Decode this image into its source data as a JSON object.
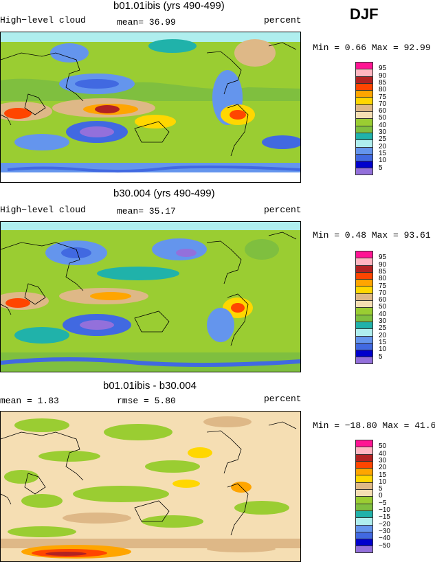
{
  "season": "DJF",
  "panels": [
    {
      "title": "b01.01ibis (yrs 490-499)",
      "left_label": "High−level cloud",
      "center_label": "mean=  36.99",
      "right_label": "percent",
      "minmax": "Min =   0.66 Max =  92.99",
      "legend_labels": [
        "95",
        "90",
        "85",
        "80",
        "75",
        "70",
        "60",
        "50",
        "40",
        "30",
        "25",
        "20",
        "15",
        "10",
        "5"
      ],
      "legend_colors": [
        "#ff1493",
        "#ffb6c1",
        "#b22222",
        "#ff4500",
        "#ffa500",
        "#ffd700",
        "#deb887",
        "#f5deb3",
        "#9acd32",
        "#7fbf3f",
        "#20b2aa",
        "#afeeee",
        "#6495ed",
        "#4169e1",
        "#0000cd",
        "#9370db"
      ]
    },
    {
      "title": "b30.004 (yrs 490-499)",
      "left_label": "High−level cloud",
      "center_label": "mean=  35.17",
      "right_label": "percent",
      "minmax": "Min =   0.48 Max =  93.61",
      "legend_labels": [
        "95",
        "90",
        "85",
        "80",
        "75",
        "70",
        "60",
        "50",
        "40",
        "30",
        "25",
        "20",
        "15",
        "10",
        "5"
      ],
      "legend_colors": [
        "#ff1493",
        "#ffb6c1",
        "#b22222",
        "#ff4500",
        "#ffa500",
        "#ffd700",
        "#deb887",
        "#f5deb3",
        "#9acd32",
        "#7fbf3f",
        "#20b2aa",
        "#afeeee",
        "#6495ed",
        "#4169e1",
        "#0000cd",
        "#9370db"
      ]
    },
    {
      "title": "b01.01ibis - b30.004",
      "left_label": "mean =   1.83",
      "center_label": "rmse =  5.80",
      "right_label": "percent",
      "minmax": "Min = −18.80 Max =  41.60",
      "legend_labels": [
        "50",
        "40",
        "30",
        "20",
        "15",
        "10",
        "5",
        "0",
        "−5",
        "−10",
        "−15",
        "−20",
        "−30",
        "−40",
        "−50"
      ],
      "legend_colors": [
        "#ff1493",
        "#ffb6c1",
        "#b22222",
        "#ff4500",
        "#ffa500",
        "#ffd700",
        "#deb887",
        "#f5deb3",
        "#9acd32",
        "#7fbf3f",
        "#20b2aa",
        "#afeeee",
        "#6495ed",
        "#4169e1",
        "#0000cd",
        "#9370db"
      ]
    }
  ]
}
